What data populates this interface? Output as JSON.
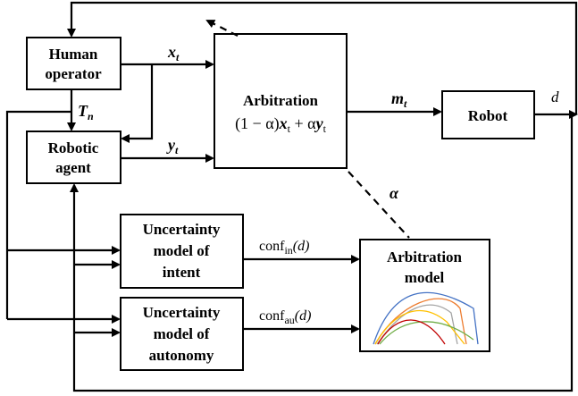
{
  "nodes": {
    "human": {
      "lines": [
        "Human",
        "operator"
      ]
    },
    "agent": {
      "lines": [
        "Robotic",
        "agent"
      ]
    },
    "arbitration": {
      "title": "Arbitration",
      "formula": [
        "(1 − α)",
        "x",
        "t",
        " + α",
        "y",
        "t"
      ]
    },
    "robot": {
      "lines": [
        "Robot"
      ]
    },
    "intent": {
      "lines": [
        "Uncertainty",
        "model of",
        "intent"
      ]
    },
    "autonomy": {
      "lines": [
        "Uncertainty",
        "model of",
        "autonomy"
      ]
    },
    "arb_model": {
      "lines": [
        "Arbitration",
        "model"
      ]
    }
  },
  "edges": {
    "x": {
      "main": "x",
      "sub": "t"
    },
    "y": {
      "main": "y",
      "sub": "t"
    },
    "T": {
      "main": "T",
      "sub": "n"
    },
    "m": {
      "main": "m",
      "sub": "t"
    },
    "d": {
      "main": "d"
    },
    "alpha": {
      "main": "α"
    },
    "conf_in": {
      "main": "conf",
      "sub": "in",
      "tail": "(d)"
    },
    "conf_au": {
      "main": "conf",
      "sub": "au",
      "tail": "(d)"
    }
  }
}
